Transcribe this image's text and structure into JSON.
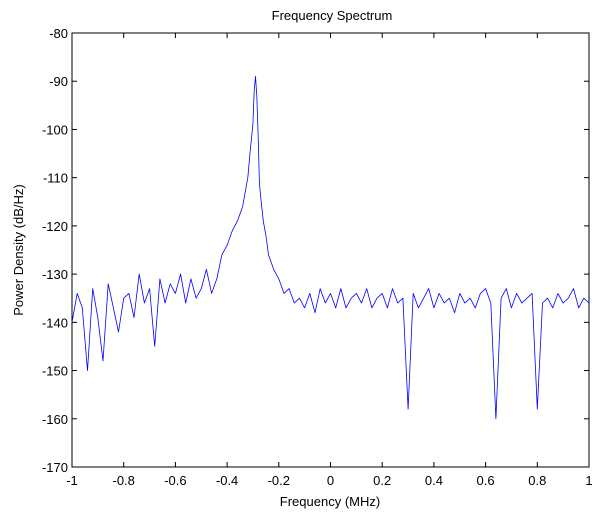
{
  "chart_data": {
    "type": "line",
    "title": "Frequency Spectrum",
    "xlabel": "Frequency (MHz)",
    "ylabel": "Power Density (dB/Hz)",
    "xlim": [
      -1,
      1
    ],
    "ylim": [
      -170,
      -80
    ],
    "xticks": [
      -1,
      -0.8,
      -0.6,
      -0.4,
      -0.2,
      0,
      0.2,
      0.4,
      0.6,
      0.8,
      1
    ],
    "xtick_labels": [
      "-1",
      "-0.8",
      "-0.6",
      "-0.4",
      "-0.2",
      "0",
      "0.2",
      "0.4",
      "0.6",
      "0.8",
      "1"
    ],
    "yticks": [
      -170,
      -160,
      -150,
      -140,
      -130,
      -120,
      -110,
      -100,
      -90,
      -80
    ],
    "ytick_labels": [
      "-170",
      "-160",
      "-150",
      "-140",
      "-130",
      "-120",
      "-110",
      "-100",
      "-90",
      "-80"
    ],
    "grid": false,
    "line_color": "#0000ff",
    "series": [
      {
        "x": [
          -1.0,
          -0.98,
          -0.96,
          -0.94,
          -0.92,
          -0.9,
          -0.88,
          -0.86,
          -0.84,
          -0.82,
          -0.8,
          -0.78,
          -0.76,
          -0.74,
          -0.72,
          -0.7,
          -0.68,
          -0.66,
          -0.64,
          -0.62,
          -0.6,
          -0.58,
          -0.56,
          -0.54,
          -0.52,
          -0.5,
          -0.48,
          -0.46,
          -0.44,
          -0.42,
          -0.4,
          -0.38,
          -0.36,
          -0.34,
          -0.32,
          -0.31,
          -0.3,
          -0.295,
          -0.29,
          -0.285,
          -0.28,
          -0.275,
          -0.27,
          -0.26,
          -0.25,
          -0.24,
          -0.22,
          -0.2,
          -0.18,
          -0.16,
          -0.14,
          -0.12,
          -0.1,
          -0.08,
          -0.06,
          -0.04,
          -0.02,
          0.0,
          0.02,
          0.04,
          0.06,
          0.08,
          0.1,
          0.12,
          0.14,
          0.16,
          0.18,
          0.2,
          0.22,
          0.24,
          0.26,
          0.28,
          0.3,
          0.32,
          0.34,
          0.36,
          0.38,
          0.4,
          0.42,
          0.44,
          0.46,
          0.48,
          0.5,
          0.52,
          0.54,
          0.56,
          0.58,
          0.6,
          0.62,
          0.64,
          0.66,
          0.68,
          0.7,
          0.72,
          0.74,
          0.76,
          0.78,
          0.8,
          0.82,
          0.84,
          0.86,
          0.88,
          0.9,
          0.92,
          0.94,
          0.96,
          0.98,
          1.0
        ],
        "y": [
          -140,
          -134,
          -137,
          -150,
          -133,
          -139,
          -148,
          -132,
          -137,
          -142,
          -135,
          -134,
          -139,
          -130,
          -136,
          -133,
          -145,
          -131,
          -136,
          -132,
          -134,
          -130,
          -136,
          -131,
          -135,
          -133,
          -129,
          -134,
          -131,
          -126,
          -124,
          -121,
          -119,
          -116,
          -110,
          -104,
          -99,
          -92,
          -89,
          -93,
          -101,
          -111,
          -114,
          -119,
          -122,
          -126,
          -129,
          -131,
          -134,
          -133,
          -136,
          -135,
          -137,
          -134,
          -138,
          -133,
          -136,
          -134,
          -137,
          -133,
          -137,
          -135,
          -134,
          -136,
          -133,
          -137,
          -135,
          -134,
          -137,
          -133,
          -136,
          -135,
          -158,
          -134,
          -137,
          -135,
          -133,
          -137,
          -134,
          -136,
          -135,
          -138,
          -134,
          -136,
          -135,
          -137,
          -134,
          -133,
          -136,
          -160,
          -135,
          -133,
          -137,
          -134,
          -136,
          -135,
          -134,
          -158,
          -136,
          -135,
          -137,
          -134,
          -136,
          -135,
          -133,
          -137,
          -135,
          -136
        ]
      }
    ]
  }
}
